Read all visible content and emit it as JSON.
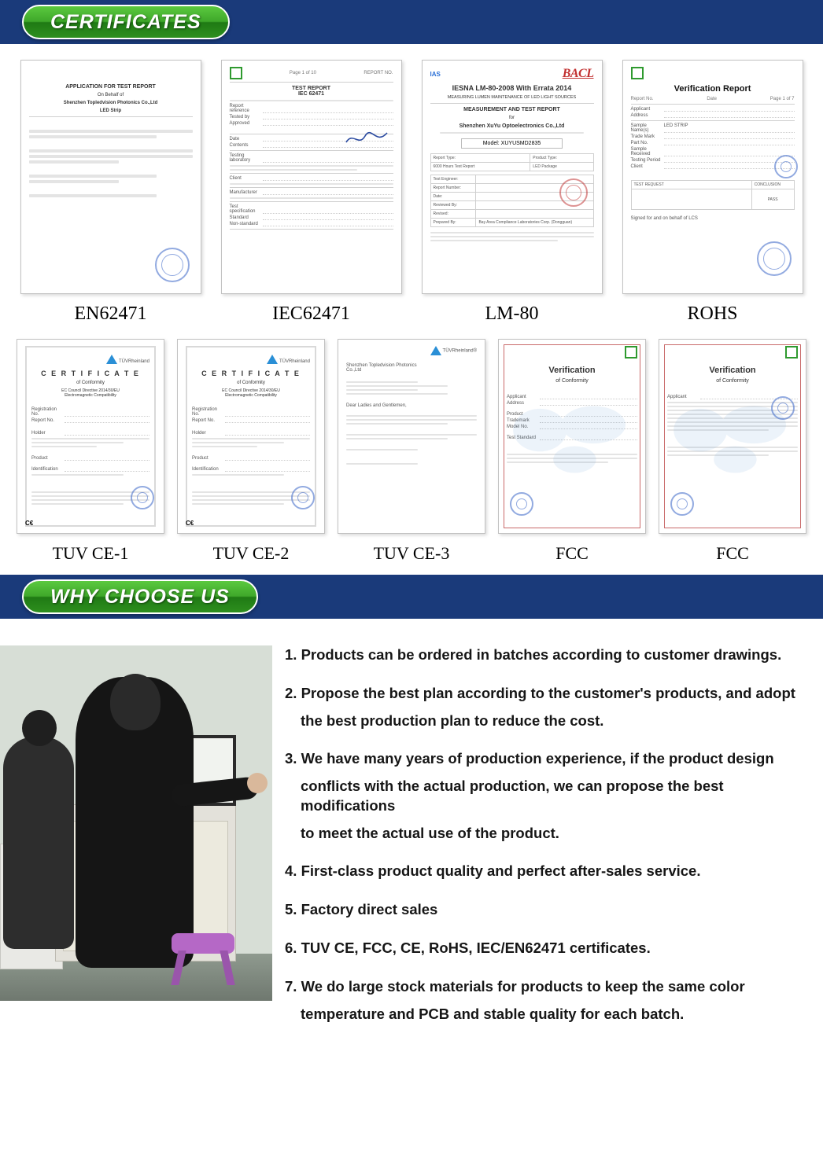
{
  "headers": {
    "certificates": "CERTIFICATES",
    "why": "WHY CHOOSE US"
  },
  "certificates_row1": [
    {
      "label": "EN62471",
      "type": "test-report"
    },
    {
      "label": "IEC62471",
      "type": "iec-report"
    },
    {
      "label": "LM-80",
      "type": "lm80"
    },
    {
      "label": "ROHS",
      "type": "verification"
    }
  ],
  "certificates_row2": [
    {
      "label": "TUV CE-1",
      "type": "tuv-ce"
    },
    {
      "label": "TUV CE-2",
      "type": "tuv-ce"
    },
    {
      "label": "TUV CE-3",
      "type": "tuv-plain"
    },
    {
      "label": "FCC",
      "type": "fcc"
    },
    {
      "label": "FCC",
      "type": "fcc"
    }
  ],
  "lm80": {
    "title1": "IESNA LM-80-2008 With Errata 2014",
    "title2": "MEASURING LUMEN MAINTENANCE OF LED LIGHT SOURCES",
    "title3": "MEASUREMENT AND TEST REPORT",
    "company": "Shenzhen XuYu Optoelectronics Co.,Ltd",
    "model_label": "Model: XUYUSMD2835",
    "brand": "BACL"
  },
  "verification": {
    "title": "Verification Report"
  },
  "tuv_ce": {
    "title": "C E R T I F I C A T E",
    "sub": "of Conformity"
  },
  "fcc": {
    "title": "Verification",
    "sub": "of Conformity"
  },
  "why_points": [
    "1. Products can be ordered in batches according to customer drawings.",
    "2. Propose the best plan according to the customer's products, and adopt|the best production plan to reduce the cost.",
    "3. We have many years of production experience, if the product design|conflicts with the actual production, we can propose the best modifications|to meet the actual use of the product.",
    "4. First-class product quality and perfect after-sales service.",
    "5. Factory direct sales",
    "6. TUV CE, FCC, CE, RoHS, IEC/EN62471 certificates.",
    "7. We do large stock materials for products to keep the same color|temperature and PCB and stable quality for each batch."
  ],
  "colors": {
    "header_bg": "#1a3a7a",
    "badge_gradient_top": "#5bc93f",
    "badge_gradient_bottom": "#2e8f1e",
    "text": "#161616"
  }
}
